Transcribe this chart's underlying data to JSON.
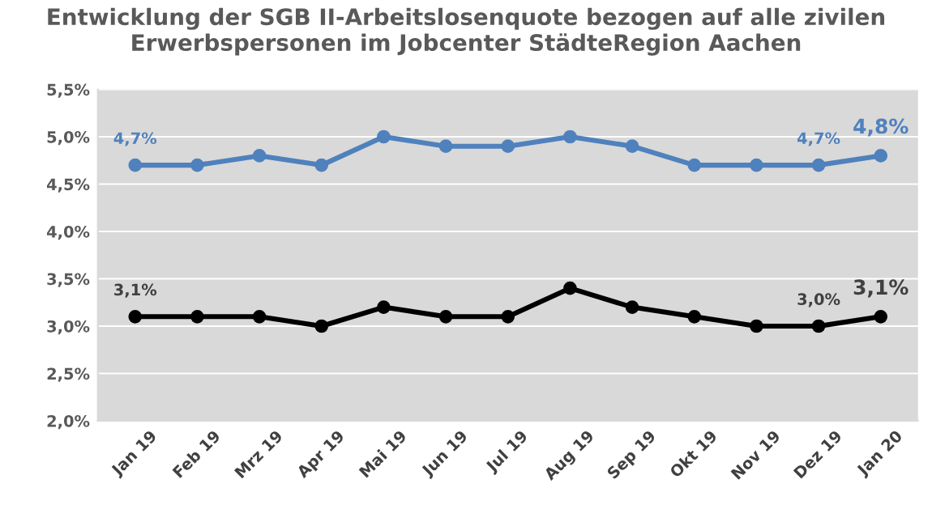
{
  "chart_data": {
    "type": "line",
    "title": "Entwicklung der SGB II-Arbeitslosenquote bezogen auf alle zivilen\nErwerbspersonen im Jobcenter StädteRegion Aachen",
    "categories": [
      "Jan 19",
      "Feb 19",
      "Mrz 19",
      "Apr 19",
      "Mai 19",
      "Jun 19",
      "Jul 19",
      "Aug 19",
      "Sep 19",
      "Okt 19",
      "Nov 19",
      "Dez 19",
      "Jan 20"
    ],
    "series": [
      {
        "color": "#4f81bd",
        "values": [
          4.7,
          4.7,
          4.8,
          4.7,
          5.0,
          4.9,
          4.9,
          5.0,
          4.9,
          4.7,
          4.7,
          4.7,
          4.8
        ],
        "value_labels": [
          "4,7%",
          null,
          null,
          null,
          null,
          null,
          null,
          null,
          null,
          null,
          null,
          "4,7%",
          "4,8%"
        ]
      },
      {
        "color": "#000000",
        "values": [
          3.1,
          3.1,
          3.1,
          3.0,
          3.2,
          3.1,
          3.1,
          3.4,
          3.2,
          3.1,
          3.0,
          3.0,
          3.1
        ],
        "value_labels": [
          "3,1%",
          null,
          null,
          null,
          null,
          null,
          null,
          null,
          null,
          null,
          null,
          "3,0%",
          "3,1%"
        ]
      }
    ],
    "ylim": [
      2.0,
      5.5
    ],
    "yticks": [
      {
        "value": 2.0,
        "label": "2,0%"
      },
      {
        "value": 2.5,
        "label": "2,5%"
      },
      {
        "value": 3.0,
        "label": "3,0%"
      },
      {
        "value": 3.5,
        "label": "3,5%"
      },
      {
        "value": 4.0,
        "label": "4,0%"
      },
      {
        "value": 4.5,
        "label": "4,5%"
      },
      {
        "value": 5.0,
        "label": "5,0%"
      },
      {
        "value": 5.5,
        "label": "5,5%"
      }
    ],
    "grid": "y",
    "marker": "circle",
    "line_style": "solid",
    "legend": false
  }
}
